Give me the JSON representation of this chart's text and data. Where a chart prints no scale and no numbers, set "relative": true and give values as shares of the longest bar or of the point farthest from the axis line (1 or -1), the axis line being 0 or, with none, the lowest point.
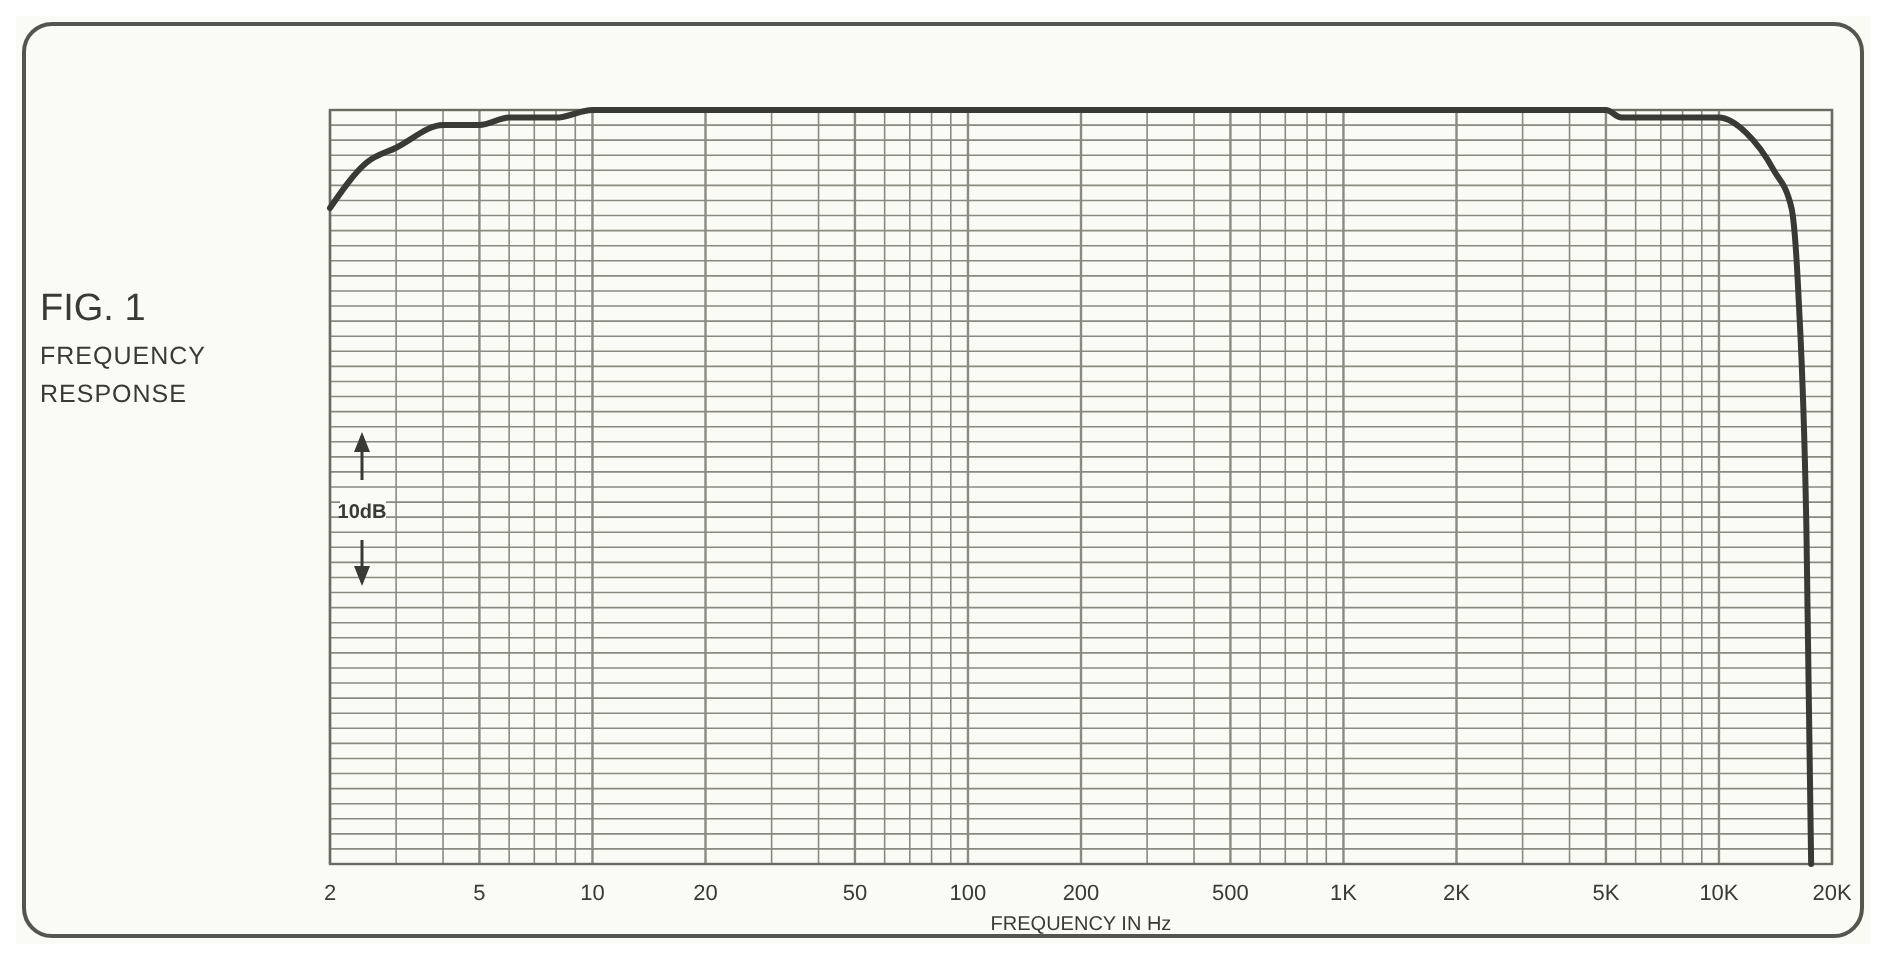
{
  "chart_data": {
    "type": "line",
    "title": "FIG. 1",
    "subtitle": "FREQUENCY RESPONSE",
    "xlabel": "FREQUENCY IN Hz",
    "annotations": [
      "10dB"
    ],
    "relative": true,
    "log": "x",
    "grid": true,
    "marker": "none",
    "line_style": "solid",
    "xlim": [
      2,
      20000
    ],
    "xticks": [
      2,
      {
        "value": 3,
        "label": null
      },
      {
        "value": 4,
        "label": null
      },
      5,
      {
        "value": 6,
        "label": null
      },
      {
        "value": 7,
        "label": null
      },
      {
        "value": 8,
        "label": null
      },
      {
        "value": 9,
        "label": null
      },
      10,
      20,
      {
        "value": 30,
        "label": null
      },
      {
        "value": 40,
        "label": null
      },
      50,
      {
        "value": 60,
        "label": null
      },
      {
        "value": 70,
        "label": null
      },
      {
        "value": 80,
        "label": null
      },
      {
        "value": 90,
        "label": null
      },
      100,
      200,
      {
        "value": 300,
        "label": null
      },
      {
        "value": 400,
        "label": null
      },
      500,
      {
        "value": 600,
        "label": null
      },
      {
        "value": 700,
        "label": null
      },
      {
        "value": 800,
        "label": null
      },
      {
        "value": 900,
        "label": null
      },
      {
        "value": 1000,
        "label": "1K"
      },
      {
        "value": 2000,
        "label": "2K"
      },
      {
        "value": 3000,
        "label": null
      },
      {
        "value": 4000,
        "label": null
      },
      {
        "value": 5000,
        "label": "5K"
      },
      {
        "value": 6000,
        "label": null
      },
      {
        "value": 7000,
        "label": null
      },
      {
        "value": 8000,
        "label": null
      },
      {
        "value": 9000,
        "label": null
      },
      {
        "value": 10000,
        "label": "10K"
      },
      {
        "value": 20000,
        "label": "20K"
      }
    ],
    "x": [
      2,
      2.5,
      3,
      4,
      5,
      6,
      8,
      10,
      50,
      500,
      3000,
      5000,
      5500,
      8000,
      10000,
      11800,
      14000,
      15600,
      16300,
      17100,
      17600
    ],
    "series": [
      {
        "color": "#3a3a35",
        "values": [
          0.87,
          0.93,
          0.95,
          0.98,
          0.98,
          0.99,
          0.99,
          1.0,
          1.0,
          1.0,
          1.0,
          1.0,
          0.99,
          0.99,
          0.99,
          0.97,
          0.92,
          0.87,
          0.75,
          0.44,
          0
        ]
      }
    ]
  }
}
